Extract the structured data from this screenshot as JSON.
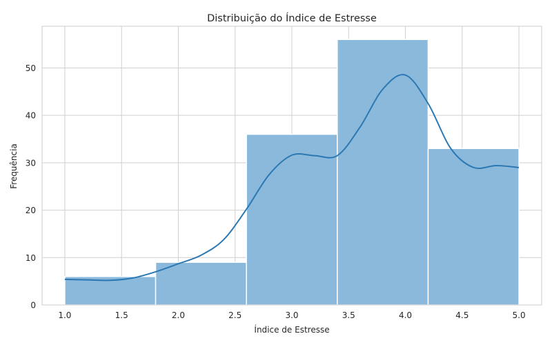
{
  "chart_data": {
    "type": "bar",
    "title": "Distribuição do Índice de Estresse",
    "xlabel": "Índice de Estresse",
    "ylabel": "Frequência",
    "xlim": [
      0.8,
      5.2
    ],
    "ylim": [
      0,
      58.8
    ],
    "x_ticks": [
      1.0,
      1.5,
      2.0,
      2.5,
      3.0,
      3.5,
      4.0,
      4.5,
      5.0
    ],
    "x_tick_labels": [
      "1.0",
      "1.5",
      "2.0",
      "2.5",
      "3.0",
      "3.5",
      "4.0",
      "4.5",
      "5.0"
    ],
    "y_ticks": [
      0,
      10,
      20,
      30,
      40,
      50
    ],
    "y_tick_labels": [
      "0",
      "10",
      "20",
      "30",
      "40",
      "50"
    ],
    "grid": true,
    "bins": [
      {
        "x0": 1.0,
        "x1": 1.8,
        "value": 6
      },
      {
        "x0": 1.8,
        "x1": 2.6,
        "value": 9
      },
      {
        "x0": 2.6,
        "x1": 3.4,
        "value": 36
      },
      {
        "x0": 3.4,
        "x1": 4.2,
        "value": 56
      },
      {
        "x0": 4.2,
        "x1": 5.0,
        "value": 33
      }
    ],
    "kde": [
      [
        1.0,
        5.4
      ],
      [
        1.2,
        5.3
      ],
      [
        1.4,
        5.2
      ],
      [
        1.6,
        5.7
      ],
      [
        1.8,
        7.0
      ],
      [
        2.0,
        8.7
      ],
      [
        2.2,
        10.5
      ],
      [
        2.4,
        13.8
      ],
      [
        2.6,
        20.2
      ],
      [
        2.8,
        27.5
      ],
      [
        3.0,
        31.6
      ],
      [
        3.2,
        31.5
      ],
      [
        3.4,
        31.5
      ],
      [
        3.6,
        37.5
      ],
      [
        3.8,
        45.5
      ],
      [
        4.0,
        48.5
      ],
      [
        4.2,
        42.5
      ],
      [
        4.4,
        33.0
      ],
      [
        4.6,
        29.0
      ],
      [
        4.8,
        29.4
      ],
      [
        5.0,
        29.0
      ]
    ],
    "colors": {
      "bar_fill": "#8ab9db",
      "bar_stroke": "#ffffff",
      "kde_line": "#2b78b3",
      "grid": "#cfcfcf",
      "spine": "#cccccc"
    }
  }
}
